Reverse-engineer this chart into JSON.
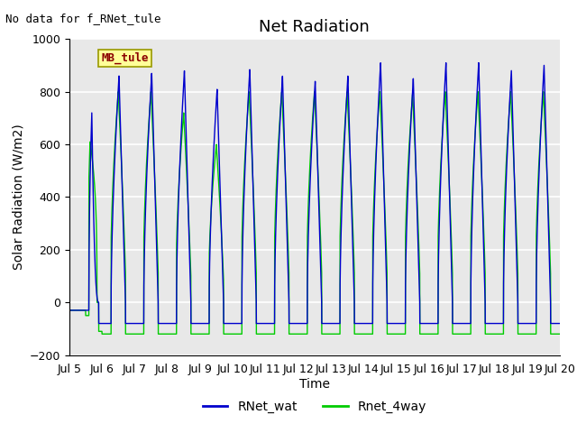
{
  "title": "Net Radiation",
  "xlabel": "Time",
  "ylabel": "Solar Radiation (W/m2)",
  "annotation_text": "No data for f_RNet_tule",
  "legend_label_text": "MB_tule",
  "ylim": [
    -200,
    1000
  ],
  "xlim_start": 5.0,
  "xlim_end": 20.0,
  "xtick_positions": [
    5,
    6,
    7,
    8,
    9,
    10,
    11,
    12,
    13,
    14,
    15,
    16,
    17,
    18,
    19,
    20
  ],
  "xtick_labels": [
    "Jul 5",
    "Jul 6",
    "Jul 7",
    "Jul 8",
    "Jul 9",
    "Jul 10",
    "Jul 11",
    "Jul 12",
    "Jul 13",
    "Jul 14",
    "Jul 15",
    "Jul 16",
    "Jul 17",
    "Jul 18",
    "Jul 19",
    "Jul 20"
  ],
  "color_blue": "#0000CD",
  "color_green": "#00CC00",
  "legend1_label": "RNet_wat",
  "legend2_label": "Rnet_4way",
  "bg_color": "#E8E8E8",
  "grid_color": "white",
  "mb_tule_box_color": "#FFFF99",
  "mb_tule_text_color": "#8B0000",
  "annotation_fontsize": 9,
  "title_fontsize": 13,
  "axis_label_fontsize": 10,
  "tick_fontsize": 9,
  "blue_peaks": [
    720,
    860,
    870,
    880,
    810,
    885,
    860,
    840,
    860,
    910,
    850,
    910,
    910,
    880,
    900
  ],
  "green_peaks": [
    610,
    800,
    800,
    720,
    600,
    800,
    800,
    800,
    800,
    800,
    790,
    800,
    800,
    800,
    800
  ],
  "blue_night": -80,
  "green_night": -110,
  "day_start": 0.28,
  "day_end": 0.72
}
